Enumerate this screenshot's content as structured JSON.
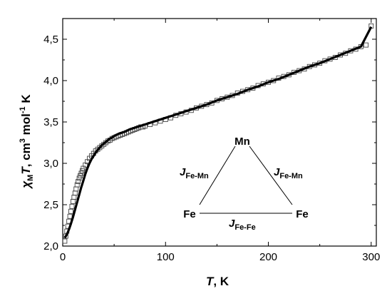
{
  "chart_data": {
    "type": "scatter",
    "xlabel": {
      "var": "T",
      "rest": ", K"
    },
    "ylabel": {
      "var": "χ",
      "sub": "M",
      "var2": "T",
      "rest": ", cm",
      "sup1": "3",
      "mid": " mol",
      "sup2": "-1",
      "end": " K"
    },
    "xlim": [
      0,
      305
    ],
    "ylim": [
      2.0,
      4.75
    ],
    "x_ticks": [
      0,
      100,
      200,
      300
    ],
    "x_tick_labels": [
      "0",
      "100",
      "200",
      "300"
    ],
    "y_ticks": [
      2.0,
      2.5,
      3.0,
      3.5,
      4.0,
      4.5
    ],
    "y_tick_labels": [
      "2,0",
      "2,5",
      "3,0",
      "3,5",
      "4,0",
      "4,5"
    ],
    "grid": false,
    "series": [
      {
        "style": "open-square-markers",
        "x": [
          2,
          3,
          4,
          5,
          6,
          7,
          8,
          9,
          10,
          11,
          12,
          13,
          14,
          15,
          16,
          17,
          18,
          19,
          20,
          22,
          24,
          26,
          28,
          30,
          32,
          34,
          36,
          38,
          40,
          42,
          44,
          46,
          48,
          50,
          52,
          54,
          56,
          58,
          60,
          62,
          64,
          66,
          68,
          70,
          72,
          74,
          76,
          78,
          80,
          85,
          90,
          95,
          100,
          105,
          110,
          115,
          120,
          125,
          130,
          135,
          140,
          145,
          150,
          155,
          160,
          165,
          170,
          175,
          180,
          185,
          190,
          195,
          200,
          205,
          210,
          215,
          220,
          225,
          230,
          235,
          240,
          245,
          250,
          255,
          260,
          265,
          270,
          275,
          280,
          285,
          290,
          295,
          300
        ],
        "y": [
          2.06,
          2.12,
          2.18,
          2.24,
          2.3,
          2.36,
          2.42,
          2.48,
          2.54,
          2.59,
          2.64,
          2.69,
          2.74,
          2.78,
          2.82,
          2.85,
          2.88,
          2.91,
          2.94,
          2.98,
          3.02,
          3.06,
          3.09,
          3.12,
          3.15,
          3.17,
          3.19,
          3.21,
          3.23,
          3.25,
          3.27,
          3.28,
          3.3,
          3.31,
          3.32,
          3.33,
          3.34,
          3.35,
          3.36,
          3.37,
          3.38,
          3.39,
          3.4,
          3.41,
          3.42,
          3.43,
          3.44,
          3.44,
          3.45,
          3.47,
          3.49,
          3.51,
          3.53,
          3.55,
          3.58,
          3.6,
          3.62,
          3.64,
          3.67,
          3.69,
          3.71,
          3.73,
          3.76,
          3.78,
          3.8,
          3.82,
          3.85,
          3.87,
          3.89,
          3.91,
          3.94,
          3.96,
          3.98,
          4.0,
          4.03,
          4.05,
          4.07,
          4.1,
          4.12,
          4.14,
          4.17,
          4.19,
          4.21,
          4.24,
          4.26,
          4.28,
          4.31,
          4.33,
          4.36,
          4.38,
          4.41,
          4.43,
          4.66
        ]
      },
      {
        "style": "solid-line",
        "x": [
          2,
          4,
          6,
          8,
          10,
          12,
          14,
          16,
          18,
          20,
          22,
          24,
          26,
          28,
          30,
          32,
          34,
          36,
          38,
          40,
          42,
          44,
          46,
          48,
          50,
          55,
          60,
          65,
          70,
          75,
          80,
          90,
          100,
          110,
          120,
          130,
          140,
          150,
          160,
          170,
          180,
          190,
          200,
          210,
          220,
          230,
          240,
          250,
          260,
          270,
          280,
          290,
          300
        ],
        "y": [
          2.1,
          2.14,
          2.2,
          2.27,
          2.35,
          2.44,
          2.53,
          2.62,
          2.71,
          2.79,
          2.87,
          2.94,
          3.0,
          3.05,
          3.09,
          3.13,
          3.16,
          3.19,
          3.22,
          3.24,
          3.26,
          3.28,
          3.3,
          3.31,
          3.33,
          3.36,
          3.38,
          3.41,
          3.43,
          3.45,
          3.47,
          3.51,
          3.55,
          3.59,
          3.63,
          3.67,
          3.71,
          3.76,
          3.8,
          3.84,
          3.89,
          3.93,
          3.98,
          4.02,
          4.07,
          4.12,
          4.17,
          4.21,
          4.26,
          4.31,
          4.36,
          4.41,
          4.65
        ]
      }
    ],
    "inset": {
      "node_top": "Mn",
      "node_left": "Fe",
      "node_right": "Fe",
      "label_left": {
        "main": "J",
        "sub": "Fe-Mn"
      },
      "label_right": {
        "main": "J",
        "sub": "Fe-Mn"
      },
      "label_bottom": {
        "main": "J",
        "sub": "Fe-Fe"
      }
    }
  }
}
